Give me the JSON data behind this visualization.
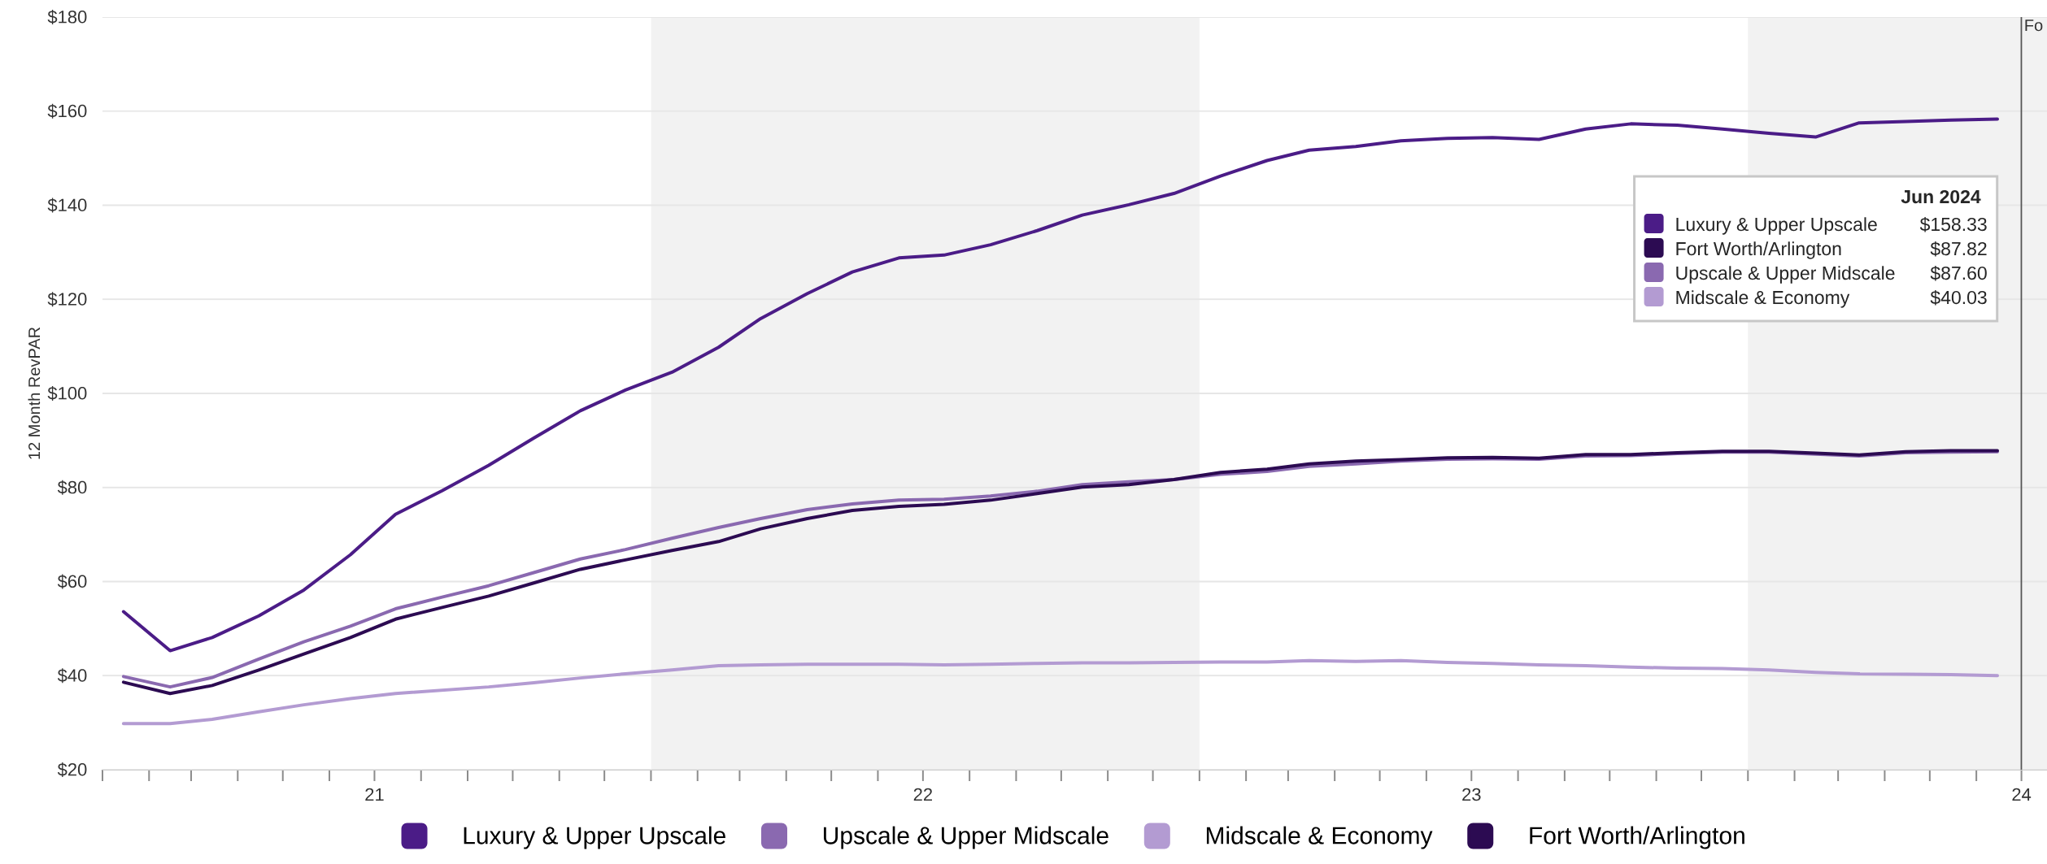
{
  "chart_data": {
    "type": "line",
    "ylabel": "12 Month RevPAR",
    "x": [
      "2021-01-15",
      "2021-02-15",
      "2021-03-15",
      "2021-04-15",
      "2021-05-15",
      "2021-06-15",
      "2021-07-15",
      "2021-08-15",
      "2021-09-15",
      "2021-10-15",
      "2021-11-15",
      "2021-12-15",
      "2022-01-15",
      "2022-02-15",
      "2022-03-15",
      "2022-04-15",
      "2022-05-15",
      "2022-06-15",
      "2022-07-15",
      "2022-08-15",
      "2022-09-15",
      "2022-10-15",
      "2022-11-15",
      "2022-12-15",
      "2023-01-15",
      "2023-02-15",
      "2023-03-15",
      "2023-04-15",
      "2023-05-15",
      "2023-06-15",
      "2023-07-15",
      "2023-08-15",
      "2023-09-15",
      "2023-10-15",
      "2023-11-15",
      "2023-12-15",
      "2024-01-15",
      "2024-02-15",
      "2024-03-15",
      "2024-04-15",
      "2024-05-15",
      "2024-06-15"
    ],
    "series": [
      {
        "name": "Luxury & Upper Upscale",
        "color": "#4b1c87",
        "values": [
          53.6,
          45.3,
          48.1,
          52.7,
          58.2,
          65.7,
          74.3,
          79.3,
          84.7,
          90.5,
          96.3,
          100.7,
          104.5,
          109.8,
          115.9,
          121.2,
          125.8,
          128.8,
          129.4,
          131.6,
          134.6,
          137.9,
          140.1,
          142.5,
          146.2,
          149.5,
          151.7,
          152.5,
          153.7,
          154.2,
          154.4,
          154.0,
          156.2,
          157.3,
          157.0,
          156.2,
          155.3,
          154.5,
          157.5,
          157.8,
          158.1,
          158.3
        ]
      },
      {
        "name": "Upscale & Upper Midscale",
        "color": "#8a69b0",
        "values": [
          39.8,
          37.6,
          39.6,
          43.5,
          47.2,
          50.5,
          54.2,
          56.7,
          59.1,
          61.9,
          64.8,
          66.8,
          69.2,
          71.5,
          73.4,
          75.3,
          76.5,
          77.3,
          77.5,
          78.2,
          79.2,
          80.6,
          81.2,
          81.7,
          82.8,
          83.4,
          84.5,
          85.0,
          85.6,
          86.0,
          86.1,
          86.0,
          86.7,
          86.8,
          87.2,
          87.5,
          87.5,
          87.1,
          86.7,
          87.4,
          87.5,
          87.6
        ]
      },
      {
        "name": "Midscale & Economy",
        "color": "#b39bd2",
        "values": [
          29.8,
          29.8,
          30.7,
          32.3,
          33.8,
          35.1,
          36.2,
          36.9,
          37.6,
          38.5,
          39.5,
          40.4,
          41.2,
          42.1,
          42.3,
          42.4,
          42.4,
          42.4,
          42.3,
          42.4,
          42.6,
          42.7,
          42.7,
          42.8,
          42.9,
          42.9,
          43.2,
          43.0,
          43.2,
          42.8,
          42.6,
          42.3,
          42.1,
          41.8,
          41.6,
          41.5,
          41.2,
          40.7,
          40.4,
          40.3,
          40.2,
          40.0
        ]
      },
      {
        "name": "Fort Worth/Arlington",
        "color": "#2c0b52",
        "values": [
          38.6,
          36.2,
          37.9,
          41.2,
          44.6,
          48.1,
          52.0,
          54.5,
          56.9,
          59.7,
          62.6,
          64.6,
          66.6,
          68.5,
          71.2,
          73.4,
          75.1,
          76.0,
          76.4,
          77.3,
          78.7,
          80.1,
          80.6,
          81.7,
          83.2,
          83.9,
          85.0,
          85.6,
          85.9,
          86.3,
          86.4,
          86.2,
          87.0,
          87.0,
          87.4,
          87.7,
          87.7,
          87.3,
          86.9,
          87.6,
          87.8,
          87.8
        ]
      }
    ],
    "xlim": [
      "2021-01-01",
      "2024-07-18"
    ],
    "xticks": [
      {
        "value": "2021-01-01",
        "label": null
      },
      {
        "value": "2021-02-01",
        "label": null
      },
      {
        "value": "2021-03-01",
        "label": null
      },
      {
        "value": "2021-04-01",
        "label": null
      },
      {
        "value": "2021-05-01",
        "label": null
      },
      {
        "value": "2021-06-01",
        "label": null
      },
      {
        "value": "2021-07-01",
        "label": "21"
      },
      {
        "value": "2021-08-01",
        "label": null
      },
      {
        "value": "2021-09-01",
        "label": null
      },
      {
        "value": "2021-10-01",
        "label": null
      },
      {
        "value": "2021-11-01",
        "label": null
      },
      {
        "value": "2021-12-01",
        "label": null
      },
      {
        "value": "2022-01-01",
        "label": null
      },
      {
        "value": "2022-02-01",
        "label": null
      },
      {
        "value": "2022-03-01",
        "label": null
      },
      {
        "value": "2022-04-01",
        "label": null
      },
      {
        "value": "2022-05-01",
        "label": null
      },
      {
        "value": "2022-06-01",
        "label": null
      },
      {
        "value": "2022-07-01",
        "label": "22"
      },
      {
        "value": "2022-08-01",
        "label": null
      },
      {
        "value": "2022-09-01",
        "label": null
      },
      {
        "value": "2022-10-01",
        "label": null
      },
      {
        "value": "2022-11-01",
        "label": null
      },
      {
        "value": "2022-12-01",
        "label": null
      },
      {
        "value": "2023-01-01",
        "label": null
      },
      {
        "value": "2023-02-01",
        "label": null
      },
      {
        "value": "2023-03-01",
        "label": null
      },
      {
        "value": "2023-04-01",
        "label": null
      },
      {
        "value": "2023-05-01",
        "label": null
      },
      {
        "value": "2023-06-01",
        "label": null
      },
      {
        "value": "2023-07-01",
        "label": "23"
      },
      {
        "value": "2023-08-01",
        "label": null
      },
      {
        "value": "2023-09-01",
        "label": null
      },
      {
        "value": "2023-10-01",
        "label": null
      },
      {
        "value": "2023-11-01",
        "label": null
      },
      {
        "value": "2023-12-01",
        "label": null
      },
      {
        "value": "2024-01-01",
        "label": null
      },
      {
        "value": "2024-02-01",
        "label": null
      },
      {
        "value": "2024-03-01",
        "label": null
      },
      {
        "value": "2024-04-01",
        "label": null
      },
      {
        "value": "2024-05-01",
        "label": null
      },
      {
        "value": "2024-06-01",
        "label": null
      },
      {
        "value": "2024-07-01",
        "label": "24"
      }
    ],
    "ylim": [
      20,
      180
    ],
    "yticks": [
      {
        "value": 20,
        "label": "$20"
      },
      {
        "value": 40,
        "label": "$40"
      },
      {
        "value": 60,
        "label": "$60"
      },
      {
        "value": 80,
        "label": "$80"
      },
      {
        "value": 100,
        "label": "$100"
      },
      {
        "value": 120,
        "label": "$120"
      },
      {
        "value": 140,
        "label": "$140"
      },
      {
        "value": 160,
        "label": "$160"
      },
      {
        "value": 180,
        "label": "$180"
      }
    ],
    "bands": [
      {
        "axis": "x",
        "from": "2022-01-01",
        "to": "2023-01-01",
        "color": "#f2f2f2"
      },
      {
        "axis": "x",
        "from": "2024-01-01",
        "to": "2024-07-18",
        "color": "#f2f2f2"
      }
    ],
    "ref_lines": [
      {
        "axis": "x",
        "value": "2024-07-01",
        "label": "Fo",
        "color": "#555555"
      }
    ],
    "annotations": [
      "Jun 2024",
      "$158.33",
      "$87.82",
      "$87.60",
      "$40.03"
    ],
    "grid": "y",
    "legend": "bottom",
    "line_style": "solid"
  }
}
